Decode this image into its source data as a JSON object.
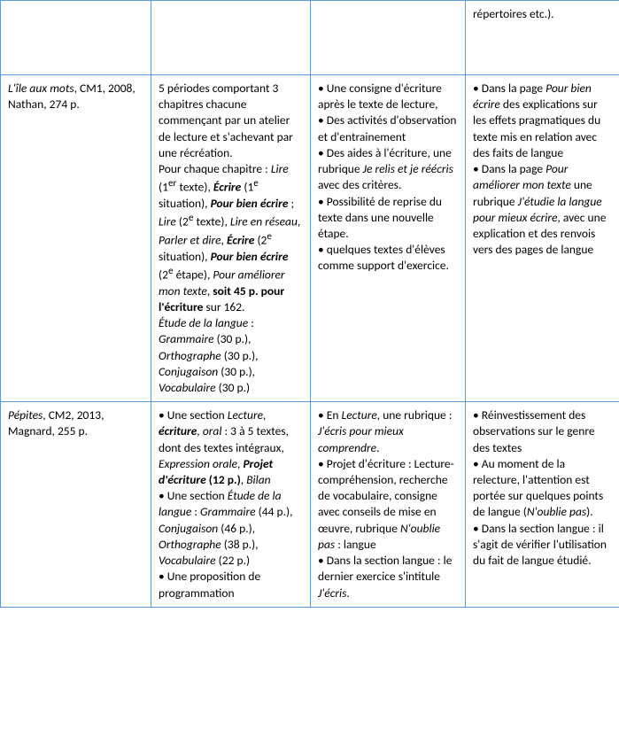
{
  "row0": {
    "c1": "",
    "c2": "",
    "c3": "",
    "c4_html": "répertoires etc.)."
  },
  "row1": {
    "c1_html": "<em>L'île aux mots</em>, CM1, 2008, Nathan, 274 p.",
    "c2_html": "5 périodes comportant 3 chapitres chacune commençant par un atelier de lecture et s'achevant par une récréation.<br>Pour chaque chapitre : <em>Lire</em> (1<sup>er</sup> texte), <strong><em>Écrire</em></strong> (1<sup>e</sup> situation), <strong><em>Pour bien écrire</em></strong> ; <em>Lire</em> (2<sup>e</sup> texte), <em>Lire en réseau</em>, <em>Parler et dire</em>, <strong><em>Écrire</em></strong> (2<sup>e</sup> situation), <strong><em>Pour bien écrire</em></strong> (2<sup>e</sup> étape), <em>Pour améliorer mon texte</em>, <strong>soit 45 p. pour l'écriture</strong> sur 162.<br><em>Étude de la langue</em> : <em>Grammaire</em> (30 p.), <em>Orthographe</em> (30 p.), <em>Conjugaison</em> (30 p.), <em>Vocabulaire</em> (30 p.)",
    "c3_html": "• Une consigne d'écriture après le texte de lecture,<br>• Des activités d'observation et d'entrainement<br>• Des aides à l'écriture, une rubrique <em>Je relis et je réécris</em> avec des critères.<br>• Possibilité de reprise du texte dans une nouvelle étape.<br>• quelques textes d'élèves comme support d'exercice.",
    "c4_html": "• Dans la page <em>Pour bien écrire</em> des explications sur les effets pragmatiques du texte mis en relation avec des faits de langue<br>• Dans la page <em>Pour améliorer mon texte</em> une rubrique <em>J'étudie la langue pour mieux écrire</em>, avec une explication et des renvois vers des pages de langue"
  },
  "row2": {
    "c1_html": "<em>Pépites</em>, CM2, 2013, Magnard, 255 p.",
    "c2_html": "• Une section <em>Lecture, <strong>écriture</strong>, oral</em> : 3 à 5 textes, dont des textes intégraux, <em>Expression orale</em>, <strong><em>Projet d'écriture</em> (12 p.)</strong>, <em>Bilan</em><br>• Une section <em>Étude de la langue</em> : <em>Grammaire</em> (44 p.), <em>Conjugaison</em> (46 p.), <em>Orthographe</em> (38 p.), <em>Vocabulaire</em> (22 p.)<br>• Une proposition de programmation",
    "c3_html": "• En <em>Lecture</em>, une rubrique : <em>J'écris pour mieux comprendre</em>.<br>• Projet d'écriture : Lecture-compréhension, recherche de vocabulaire, consigne avec conseils de mise en œuvre, rubrique <em>N'oublie pas</em> : langue<br>• Dans la section langue : le dernier exercice s'intitule <em>J'écris</em>.",
    "c4_html": "• Réinvestissement des observations sur le genre des textes<br>• Au moment de la relecture, l'attention est portée sur quelques points de langue (<em>N'oublie pas</em>).<br>• Dans la section langue : il s'agit de vérifier l'utilisation du fait de langue étudié."
  }
}
